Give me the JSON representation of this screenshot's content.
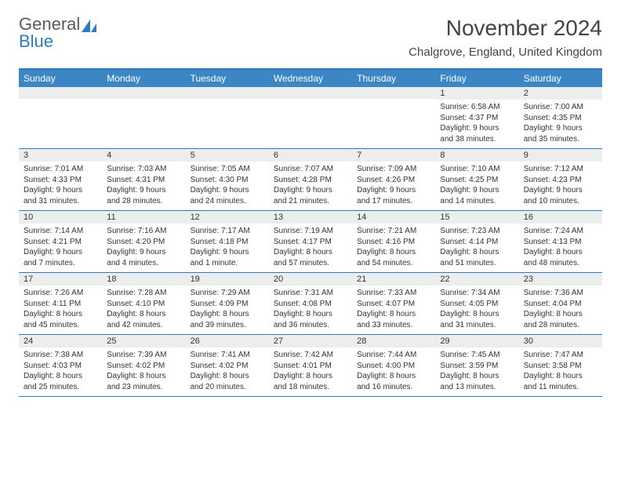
{
  "brand": {
    "name_gray": "General",
    "name_blue": "Blue"
  },
  "title": "November 2024",
  "location": "Chalgrove, England, United Kingdom",
  "colors": {
    "accent": "#3d86c6",
    "border": "#2f7bbf",
    "daynum_bg": "#eceded",
    "text": "#333333",
    "bg": "#ffffff"
  },
  "day_labels": [
    "Sunday",
    "Monday",
    "Tuesday",
    "Wednesday",
    "Thursday",
    "Friday",
    "Saturday"
  ],
  "weeks": [
    [
      {
        "num": "",
        "sunrise": "",
        "sunset": "",
        "daylight": ""
      },
      {
        "num": "",
        "sunrise": "",
        "sunset": "",
        "daylight": ""
      },
      {
        "num": "",
        "sunrise": "",
        "sunset": "",
        "daylight": ""
      },
      {
        "num": "",
        "sunrise": "",
        "sunset": "",
        "daylight": ""
      },
      {
        "num": "",
        "sunrise": "",
        "sunset": "",
        "daylight": ""
      },
      {
        "num": "1",
        "sunrise": "Sunrise: 6:58 AM",
        "sunset": "Sunset: 4:37 PM",
        "daylight": "Daylight: 9 hours and 38 minutes."
      },
      {
        "num": "2",
        "sunrise": "Sunrise: 7:00 AM",
        "sunset": "Sunset: 4:35 PM",
        "daylight": "Daylight: 9 hours and 35 minutes."
      }
    ],
    [
      {
        "num": "3",
        "sunrise": "Sunrise: 7:01 AM",
        "sunset": "Sunset: 4:33 PM",
        "daylight": "Daylight: 9 hours and 31 minutes."
      },
      {
        "num": "4",
        "sunrise": "Sunrise: 7:03 AM",
        "sunset": "Sunset: 4:31 PM",
        "daylight": "Daylight: 9 hours and 28 minutes."
      },
      {
        "num": "5",
        "sunrise": "Sunrise: 7:05 AM",
        "sunset": "Sunset: 4:30 PM",
        "daylight": "Daylight: 9 hours and 24 minutes."
      },
      {
        "num": "6",
        "sunrise": "Sunrise: 7:07 AM",
        "sunset": "Sunset: 4:28 PM",
        "daylight": "Daylight: 9 hours and 21 minutes."
      },
      {
        "num": "7",
        "sunrise": "Sunrise: 7:09 AM",
        "sunset": "Sunset: 4:26 PM",
        "daylight": "Daylight: 9 hours and 17 minutes."
      },
      {
        "num": "8",
        "sunrise": "Sunrise: 7:10 AM",
        "sunset": "Sunset: 4:25 PM",
        "daylight": "Daylight: 9 hours and 14 minutes."
      },
      {
        "num": "9",
        "sunrise": "Sunrise: 7:12 AM",
        "sunset": "Sunset: 4:23 PM",
        "daylight": "Daylight: 9 hours and 10 minutes."
      }
    ],
    [
      {
        "num": "10",
        "sunrise": "Sunrise: 7:14 AM",
        "sunset": "Sunset: 4:21 PM",
        "daylight": "Daylight: 9 hours and 7 minutes."
      },
      {
        "num": "11",
        "sunrise": "Sunrise: 7:16 AM",
        "sunset": "Sunset: 4:20 PM",
        "daylight": "Daylight: 9 hours and 4 minutes."
      },
      {
        "num": "12",
        "sunrise": "Sunrise: 7:17 AM",
        "sunset": "Sunset: 4:18 PM",
        "daylight": "Daylight: 9 hours and 1 minute."
      },
      {
        "num": "13",
        "sunrise": "Sunrise: 7:19 AM",
        "sunset": "Sunset: 4:17 PM",
        "daylight": "Daylight: 8 hours and 57 minutes."
      },
      {
        "num": "14",
        "sunrise": "Sunrise: 7:21 AM",
        "sunset": "Sunset: 4:16 PM",
        "daylight": "Daylight: 8 hours and 54 minutes."
      },
      {
        "num": "15",
        "sunrise": "Sunrise: 7:23 AM",
        "sunset": "Sunset: 4:14 PM",
        "daylight": "Daylight: 8 hours and 51 minutes."
      },
      {
        "num": "16",
        "sunrise": "Sunrise: 7:24 AM",
        "sunset": "Sunset: 4:13 PM",
        "daylight": "Daylight: 8 hours and 48 minutes."
      }
    ],
    [
      {
        "num": "17",
        "sunrise": "Sunrise: 7:26 AM",
        "sunset": "Sunset: 4:11 PM",
        "daylight": "Daylight: 8 hours and 45 minutes."
      },
      {
        "num": "18",
        "sunrise": "Sunrise: 7:28 AM",
        "sunset": "Sunset: 4:10 PM",
        "daylight": "Daylight: 8 hours and 42 minutes."
      },
      {
        "num": "19",
        "sunrise": "Sunrise: 7:29 AM",
        "sunset": "Sunset: 4:09 PM",
        "daylight": "Daylight: 8 hours and 39 minutes."
      },
      {
        "num": "20",
        "sunrise": "Sunrise: 7:31 AM",
        "sunset": "Sunset: 4:08 PM",
        "daylight": "Daylight: 8 hours and 36 minutes."
      },
      {
        "num": "21",
        "sunrise": "Sunrise: 7:33 AM",
        "sunset": "Sunset: 4:07 PM",
        "daylight": "Daylight: 8 hours and 33 minutes."
      },
      {
        "num": "22",
        "sunrise": "Sunrise: 7:34 AM",
        "sunset": "Sunset: 4:05 PM",
        "daylight": "Daylight: 8 hours and 31 minutes."
      },
      {
        "num": "23",
        "sunrise": "Sunrise: 7:36 AM",
        "sunset": "Sunset: 4:04 PM",
        "daylight": "Daylight: 8 hours and 28 minutes."
      }
    ],
    [
      {
        "num": "24",
        "sunrise": "Sunrise: 7:38 AM",
        "sunset": "Sunset: 4:03 PM",
        "daylight": "Daylight: 8 hours and 25 minutes."
      },
      {
        "num": "25",
        "sunrise": "Sunrise: 7:39 AM",
        "sunset": "Sunset: 4:02 PM",
        "daylight": "Daylight: 8 hours and 23 minutes."
      },
      {
        "num": "26",
        "sunrise": "Sunrise: 7:41 AM",
        "sunset": "Sunset: 4:02 PM",
        "daylight": "Daylight: 8 hours and 20 minutes."
      },
      {
        "num": "27",
        "sunrise": "Sunrise: 7:42 AM",
        "sunset": "Sunset: 4:01 PM",
        "daylight": "Daylight: 8 hours and 18 minutes."
      },
      {
        "num": "28",
        "sunrise": "Sunrise: 7:44 AM",
        "sunset": "Sunset: 4:00 PM",
        "daylight": "Daylight: 8 hours and 16 minutes."
      },
      {
        "num": "29",
        "sunrise": "Sunrise: 7:45 AM",
        "sunset": "Sunset: 3:59 PM",
        "daylight": "Daylight: 8 hours and 13 minutes."
      },
      {
        "num": "30",
        "sunrise": "Sunrise: 7:47 AM",
        "sunset": "Sunset: 3:58 PM",
        "daylight": "Daylight: 8 hours and 11 minutes."
      }
    ]
  ]
}
